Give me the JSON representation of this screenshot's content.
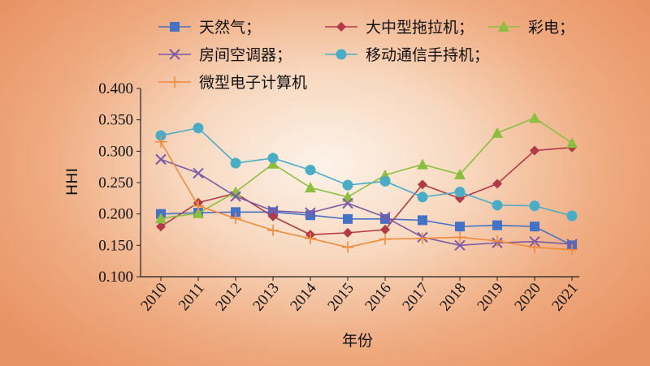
{
  "chart_data": {
    "type": "line",
    "title": "",
    "xlabel": "年份",
    "ylabel": "HHI",
    "x": [
      "2010",
      "2011",
      "2012",
      "2013",
      "2014",
      "2015",
      "2016",
      "2017",
      "2018",
      "2019",
      "2020",
      "2021"
    ],
    "ylim": [
      0.1,
      0.4
    ],
    "yticks": [
      "0.100",
      "0.150",
      "0.200",
      "0.250",
      "0.300",
      "0.350",
      "0.400"
    ],
    "grid": false,
    "legend_position": "top",
    "series": [
      {
        "name": "天然气；",
        "color": "#4472c4",
        "marker": "square",
        "values": [
          0.2,
          0.202,
          0.203,
          0.203,
          0.198,
          0.192,
          0.192,
          0.19,
          0.18,
          0.182,
          0.18,
          0.15
        ]
      },
      {
        "name": "大中型拖拉机；",
        "color": "#b23a48",
        "marker": "diamond",
        "values": [
          0.18,
          0.218,
          0.233,
          0.196,
          0.167,
          0.17,
          0.175,
          0.247,
          0.225,
          0.248,
          0.301,
          0.306
        ]
      },
      {
        "name": "彩电；",
        "color": "#8cbf3f",
        "marker": "triangle",
        "values": [
          0.193,
          0.201,
          0.235,
          0.28,
          0.242,
          0.227,
          0.262,
          0.279,
          0.263,
          0.329,
          0.353,
          0.313
        ]
      },
      {
        "name": "房间空调器；",
        "color": "#7b5ba6",
        "marker": "x",
        "values": [
          0.287,
          0.265,
          0.228,
          0.205,
          0.202,
          0.217,
          0.195,
          0.163,
          0.15,
          0.154,
          0.156,
          0.152
        ]
      },
      {
        "name": "移动通信手持机；",
        "color": "#4bacc6",
        "marker": "circle",
        "values": [
          0.325,
          0.337,
          0.281,
          0.289,
          0.27,
          0.246,
          0.252,
          0.227,
          0.235,
          0.214,
          0.213,
          0.197
        ]
      },
      {
        "name": "微型电子计算机",
        "color": "#f08a3c",
        "marker": "plus",
        "values": [
          0.315,
          0.213,
          0.193,
          0.174,
          0.161,
          0.147,
          0.16,
          0.161,
          0.163,
          0.157,
          0.147,
          0.143
        ]
      }
    ]
  }
}
